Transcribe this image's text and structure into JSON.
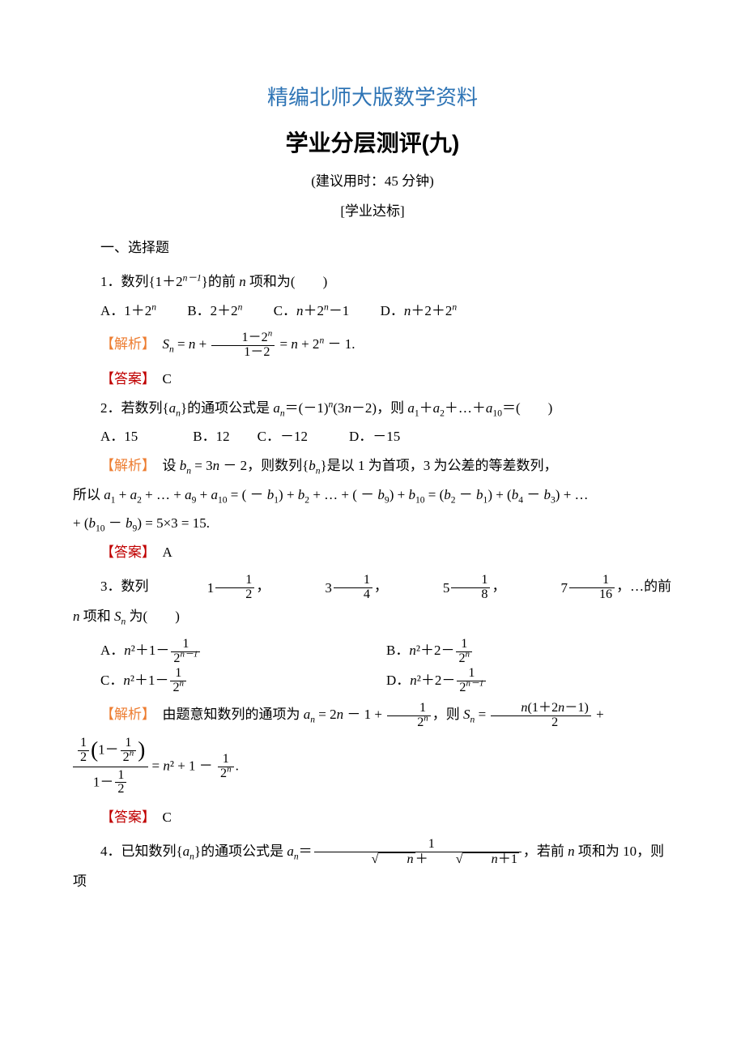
{
  "colors": {
    "header_title": "#2e74b5",
    "text": "#000000",
    "analysis": "#ed7d31",
    "answer": "#c00000",
    "background": "#ffffff"
  },
  "typography": {
    "header_title_fontsize": 26,
    "main_title_fontsize": 28,
    "body_fontsize": 17,
    "line_height": 2.1,
    "header_font": "SimHei",
    "body_font": "SimSun"
  },
  "header_title": "精编北师大版数学资料",
  "main_title": "学业分层测评(九)",
  "subtitle": "(建议用时：45 分钟)",
  "section_label": "[学业达标]",
  "section_head": "一、选择题",
  "labels": {
    "analysis": "【解析】",
    "answer": "【答案】"
  },
  "q1": {
    "stem_pre": "1．数列{1＋2",
    "stem_exp": "n－1",
    "stem_post": "}的前 ",
    "stem_n": "n",
    "stem_post2": " 项和为(　　)",
    "optA": "A．1＋2",
    "optA_exp": "n",
    "optB": "B．2＋2",
    "optB_exp": "n",
    "optC": "C．",
    "optC_n": "n",
    "optC_mid": "＋2",
    "optC_exp": "n",
    "optC_post": "－1",
    "optD": "D．",
    "optD_n": "n",
    "optD_mid": "＋2＋2",
    "optD_exp": "n",
    "analysis_pre": "　",
    "analysis_Sn": "S",
    "analysis_sub_n": "n",
    "analysis_eq": " = ",
    "analysis_n1": "n",
    "analysis_plus": " + ",
    "analysis_frac_num": "1－2",
    "analysis_frac_num_exp": "n",
    "analysis_frac_den": "1－2",
    "analysis_eq2": " = ",
    "analysis_n2": "n",
    "analysis_mid": " + 2",
    "analysis_exp": "n",
    "analysis_post": " － 1.",
    "answer": "C"
  },
  "q2": {
    "stem_pre": "2．若数列{",
    "stem_an_a": "a",
    "stem_an_n": "n",
    "stem_mid1": "}的通项公式是 ",
    "stem_an_a2": "a",
    "stem_an_n2": "n",
    "stem_mid2": "＝(－1)",
    "stem_exp_n": "n",
    "stem_mid3": "(3",
    "stem_n3": "n",
    "stem_mid4": "－2)，则 ",
    "stem_a1": "a",
    "stem_s1": "1",
    "stem_plus1": "＋",
    "stem_a2": "a",
    "stem_s2": "2",
    "stem_dots": "＋…＋",
    "stem_a10": "a",
    "stem_s10": "10",
    "stem_post": "＝(　　)",
    "optA": "A．15",
    "optB": "B．12",
    "optC": "C．－12",
    "optD": "D．－15",
    "analysis_l1": "　设 b_n = 3n － 2，则数列{b_n}是以 1 为首项，3 为公差的等差数列，",
    "analysis_l2": "所以 a_1 + a_2 + … + a_9 + a_10 = ( － b_1) + b_2 + … + ( － b_9) + b_10 = (b_2 － b_1) + (b_4 － b_3) + …",
    "analysis_l3": "+ (b_10 － b_9) = 5×3 = 15.",
    "answer": "A"
  },
  "q3": {
    "stem_pre": "3．数列 ",
    "m1w": "1",
    "m1n": "1",
    "m1d": "2",
    "sep": "，",
    "m2w": "3",
    "m2n": "1",
    "m2d": "4",
    "m3w": "5",
    "m3n": "1",
    "m3d": "8",
    "m4w": "7",
    "m4n": "1",
    "m4d": "16",
    "stem_post1": "，…的前 ",
    "stem_n": "n",
    "stem_post2": " 项和 ",
    "stem_Sn_S": "S",
    "stem_Sn_n": "n",
    "stem_post3": " 为(　　)",
    "optA_pre": "A．",
    "optA_n2": "n",
    "optA_mid": "²＋1－",
    "optA_num": "1",
    "optA_den_pre": "2",
    "optA_den_exp": "n－1",
    "optB_pre": "B．",
    "optB_n2": "n",
    "optB_mid": "²＋2－",
    "optB_num": "1",
    "optB_den_pre": "2",
    "optB_den_exp": "n",
    "optC_pre": "C．",
    "optC_n2": "n",
    "optC_mid": "²＋1－",
    "optC_num": "1",
    "optC_den_pre": "2",
    "optC_den_exp": "n",
    "optD_pre": "D．",
    "optD_n2": "n",
    "optD_mid": "²＋2－",
    "optD_num": "1",
    "optD_den_pre": "2",
    "optD_den_exp": "n－1",
    "ana_pre": "　由题意知数列的通项为 ",
    "ana_a": "a",
    "ana_n": "n",
    "ana_eq": " = 2",
    "ana_nn": "n",
    "ana_m1": " － 1 + ",
    "ana_f1num": "1",
    "ana_f1den_pre": "2",
    "ana_f1den_exp": "n",
    "ana_m2": "，则 ",
    "ana_S": "S",
    "ana_Sn": "n",
    "ana_eq2": " = ",
    "ana_f2num_pre": "n",
    "ana_f2num_mid": "(1＋2",
    "ana_f2num_n": "n",
    "ana_f2num_post": "－1)",
    "ana_f2den": "2",
    "ana_plus": " +",
    "ana2_f_outer_num_half_n": "1",
    "ana2_f_outer_num_half_d": "2",
    "ana2_inner_num": "1",
    "ana2_inner_den_pre": "2",
    "ana2_inner_den_exp": "n",
    "ana2_outer_den_pre": "1－",
    "ana2_outer_den_half_n": "1",
    "ana2_outer_den_half_d": "2",
    "ana2_eq": " = ",
    "ana2_n": "n",
    "ana2_mid": "² + 1 － ",
    "ana2_fnum": "1",
    "ana2_fden_pre": "2",
    "ana2_fden_exp": "n",
    "ana2_dot": ".",
    "answer": "C"
  },
  "q4": {
    "stem_pre": "4．已知数列{",
    "a": "a",
    "n": "n",
    "mid1": "}的通项公式是 ",
    "a2": "a",
    "n2": "n",
    "eq": "＝",
    "fnum": "1",
    "fden_s1_rad": "n",
    "fden_plus": "＋",
    "fden_s2_rad_pre": "n",
    "fden_s2_rad_post": "＋1",
    "post1": "，若前 ",
    "nn": "n",
    "post2": " 项和为 10，则项"
  }
}
